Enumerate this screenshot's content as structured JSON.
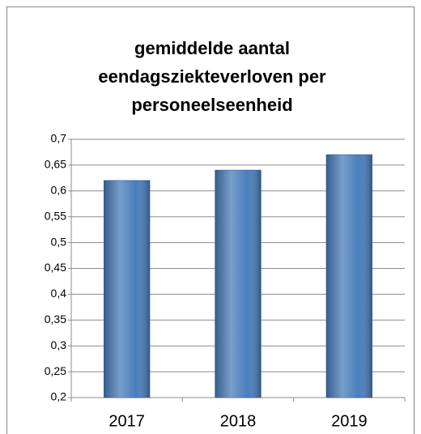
{
  "chart_data": {
    "type": "bar",
    "title": "gemiddelde aantal eendagsziekteverloven per personeelseenheid",
    "categories": [
      "2017",
      "2018",
      "2019"
    ],
    "values": [
      0.62,
      0.64,
      0.67
    ],
    "color": "#4a7ebb",
    "ylim": [
      0.2,
      0.7
    ],
    "yticks": [
      {
        "value": 0.2,
        "label": "0,2"
      },
      {
        "value": 0.25,
        "label": "0,25"
      },
      {
        "value": 0.3,
        "label": "0,3"
      },
      {
        "value": 0.35,
        "label": "0,35"
      },
      {
        "value": 0.4,
        "label": "0,4"
      },
      {
        "value": 0.45,
        "label": "0,45"
      },
      {
        "value": 0.5,
        "label": "0,5"
      },
      {
        "value": 0.55,
        "label": "0,55"
      },
      {
        "value": 0.6,
        "label": "0,6"
      },
      {
        "value": 0.65,
        "label": "0,65"
      },
      {
        "value": 0.7,
        "label": "0,7"
      }
    ],
    "grid": true
  }
}
